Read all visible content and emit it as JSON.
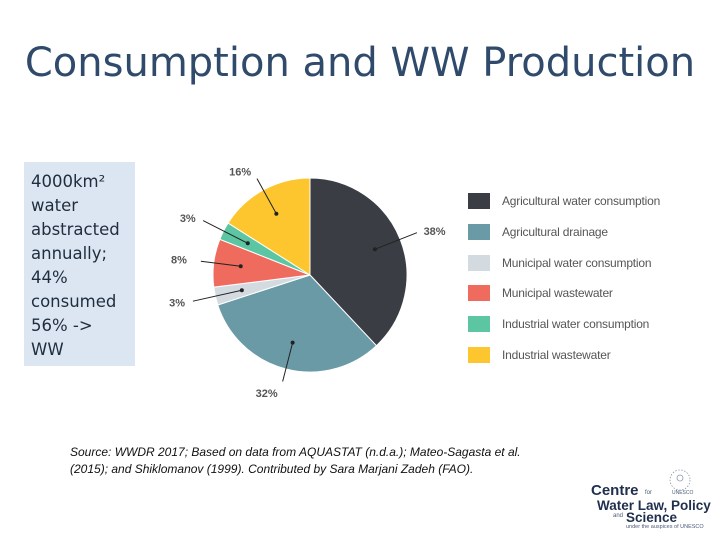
{
  "slide": {
    "title": "Consumption and WW Production"
  },
  "infobox": {
    "line1": "4000km² water abstracted annually;",
    "line2": "44% consumed",
    "line3": "56% -> WW"
  },
  "source": {
    "text": "Source: WWDR 2017; Based on data from AQUASTAT (n.d.a.); Mateo-Sagasta et al. (2015); and Shiklomanov (1999). Contributed by Sara Marjani Zadeh (FAO)."
  },
  "logo": {
    "line1": "Centre",
    "for": "for",
    "line2": "Water Law, Policy",
    "and": "and",
    "line3": "Science",
    "under": "under the auspices of UNESCO",
    "seal": "UNESCO"
  },
  "chart_data": {
    "type": "pie",
    "title": "",
    "categories": [
      "Agricultural water consumption",
      "Agricultural drainage",
      "Municipal water consumption",
      "Municipal wastewater",
      "Industrial water consumption",
      "Industrial wastewater"
    ],
    "values": [
      38,
      32,
      3,
      8,
      3,
      16
    ],
    "data_labels": [
      "38%",
      "32%",
      "3%",
      "8%",
      "3%",
      "16%"
    ],
    "colors": [
      "#3a3d44",
      "#6a9aa6",
      "#d3dbe1",
      "#ee6b5e",
      "#5cc5a2",
      "#fdc62e"
    ],
    "start_angle_deg": 0,
    "direction": "clockwise",
    "legend_position": "right"
  }
}
